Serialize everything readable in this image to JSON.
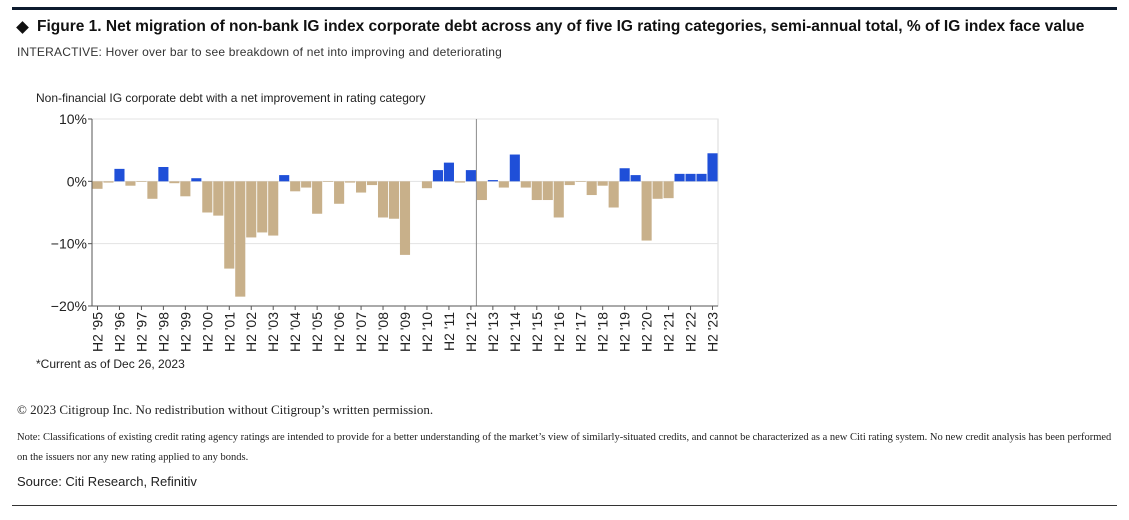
{
  "header": {
    "title": "Figure 1. Net migration of non-bank IG index corporate debt across any of five IG rating categories, semi-annual total, % of IG index face value",
    "subtitle": "INTERACTIVE: Hover over bar to see breakdown of net into improving and deteriorating"
  },
  "chart_data": {
    "type": "bar",
    "title": "Non-financial IG corporate debt with a net improvement in rating category",
    "xlabel": "",
    "ylabel": "",
    "ylim": [
      -20,
      10
    ],
    "yticks": [
      10,
      0,
      -10,
      -20
    ],
    "ytick_labels": [
      "10%",
      "0%",
      "−10%",
      "−20%"
    ],
    "grid": true,
    "colors": {
      "positive": "#1f4fd8",
      "negative": "#c8b08a"
    },
    "categories": [
      "H2 '95",
      "H1 '96",
      "H2 '96",
      "H1 '97",
      "H2 '97",
      "H1 '98",
      "H2 '98",
      "H1 '99",
      "H2 '99",
      "H1 '00",
      "H2 '00",
      "H1 '01",
      "H2 '01",
      "H1 '02",
      "H2 '02",
      "H1 '03",
      "H2 '03",
      "H1 '04",
      "H2 '04",
      "H1 '05",
      "H2 '05",
      "H1 '06",
      "H2 '06",
      "H1 '07",
      "H2 '07",
      "H1 '08",
      "H2 '08",
      "H1 '09",
      "H2 '09",
      "H1 '10",
      "H2 '10",
      "H1 '11",
      "H2 '11",
      "H1 '12",
      "H2 '12",
      "H1 '13",
      "H2 '13",
      "H1 '14",
      "H2 '14",
      "H1 '15",
      "H2 '15",
      "H1 '16",
      "H2 '16",
      "H1 '17",
      "H2 '17",
      "H1 '18",
      "H2 '18",
      "H1 '19",
      "H2 '19",
      "H1 '20",
      "H2 '20",
      "H1 '21",
      "H2 '21",
      "H1 '22",
      "H2 '22",
      "H1 '23",
      "H2 '23"
    ],
    "tick_labels": [
      "H2 '95",
      "H2 '96",
      "H2 '97",
      "H2 '98",
      "H2 '99",
      "H2 '00",
      "H2 '01",
      "H2 '02",
      "H2 '03",
      "H2 '04",
      "H2 '05",
      "H2 '06",
      "H2 '07",
      "H2 '08",
      "H2 '09",
      "H2 '10",
      "H2 '11",
      "H2 '12",
      "H2 '13",
      "H2 '14",
      "H2 '15",
      "H2 '16",
      "H2 '17",
      "H2 '18",
      "H2 '19",
      "H2 '20",
      "H2 '21",
      "H2 '22",
      "H2 '23"
    ],
    "values": [
      -1.2,
      -0.2,
      2.0,
      -0.7,
      -0.1,
      -2.8,
      2.3,
      -0.3,
      -2.4,
      0.5,
      -5.0,
      -5.5,
      -14.0,
      -18.5,
      -9.0,
      -8.2,
      -8.7,
      1.0,
      -1.6,
      -1.0,
      -5.2,
      -0.1,
      -3.6,
      -0.2,
      -1.8,
      -0.6,
      -5.8,
      -6.0,
      -11.8,
      0.0,
      -1.1,
      1.8,
      3.0,
      -0.2,
      1.8,
      -3.0,
      0.2,
      -1.0,
      4.3,
      -1.0,
      -3.0,
      -3.0,
      -5.8,
      -0.6,
      -0.1,
      -2.2,
      -0.7,
      -4.2,
      2.1,
      1.0,
      -9.5,
      -2.8,
      -2.7,
      1.2,
      1.2,
      1.2,
      4.5
    ],
    "marker_after_category": "H1 '13"
  },
  "footnote": "*Current as of Dec 26, 2023",
  "copyright": "© 2023 Citigroup Inc. No redistribution without Citigroup’s written permission.",
  "note": "Note: Classifications of existing credit rating agency ratings are intended to provide for a better understanding of the market’s view of similarly-situated credits, and cannot be characterized as a new Citi rating system. No new credit analysis has been performed on the issuers nor any new rating applied to any bonds.",
  "source": "Source: Citi Research, Refinitiv"
}
